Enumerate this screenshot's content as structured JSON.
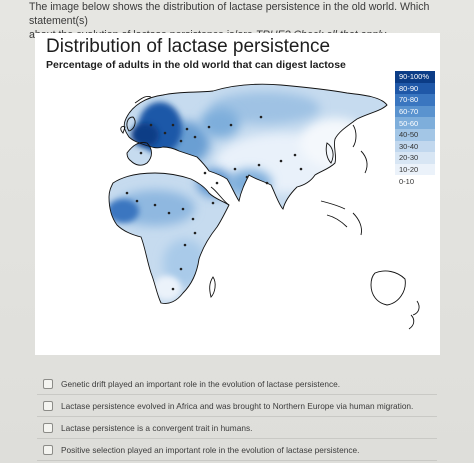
{
  "question": {
    "line1": "The image below shows the distribution of lactase persistence in the old world. Which statement(s)",
    "line2_a": "about the evolution of lactase persistence is/are ",
    "line2_b": "TRUE? Check all that apply"
  },
  "figure": {
    "title": "Distribution of lactase persistence",
    "subtitle": "Percentage of adults in the old world that can digest lactose"
  },
  "legend": [
    {
      "label": "90-100%",
      "color": "#0b3c86"
    },
    {
      "label": "80-90",
      "color": "#1f58a8"
    },
    {
      "label": "70-80",
      "color": "#3a76c0"
    },
    {
      "label": "60-70",
      "color": "#5a93cf"
    },
    {
      "label": "50-60",
      "color": "#7eaedb"
    },
    {
      "label": "40-50",
      "color": "#a3c6e6"
    },
    {
      "label": "30-40",
      "color": "#c2d8ee"
    },
    {
      "label": "20-30",
      "color": "#d8e6f4"
    },
    {
      "label": "10-20",
      "color": "#ebf2fa"
    },
    {
      "label": "0-10",
      "color": "#ffffff"
    }
  ],
  "options": [
    {
      "label": "Genetic drift played an important role in the evolution of lactase persistence."
    },
    {
      "label": "Lactase persistence evolved in Africa and was brought to Northern Europe via human migration."
    },
    {
      "label": "Lactase persistence is a convergent trait in humans."
    },
    {
      "label": "Positive selection played an important role in the evolution of lactase persistence."
    }
  ]
}
